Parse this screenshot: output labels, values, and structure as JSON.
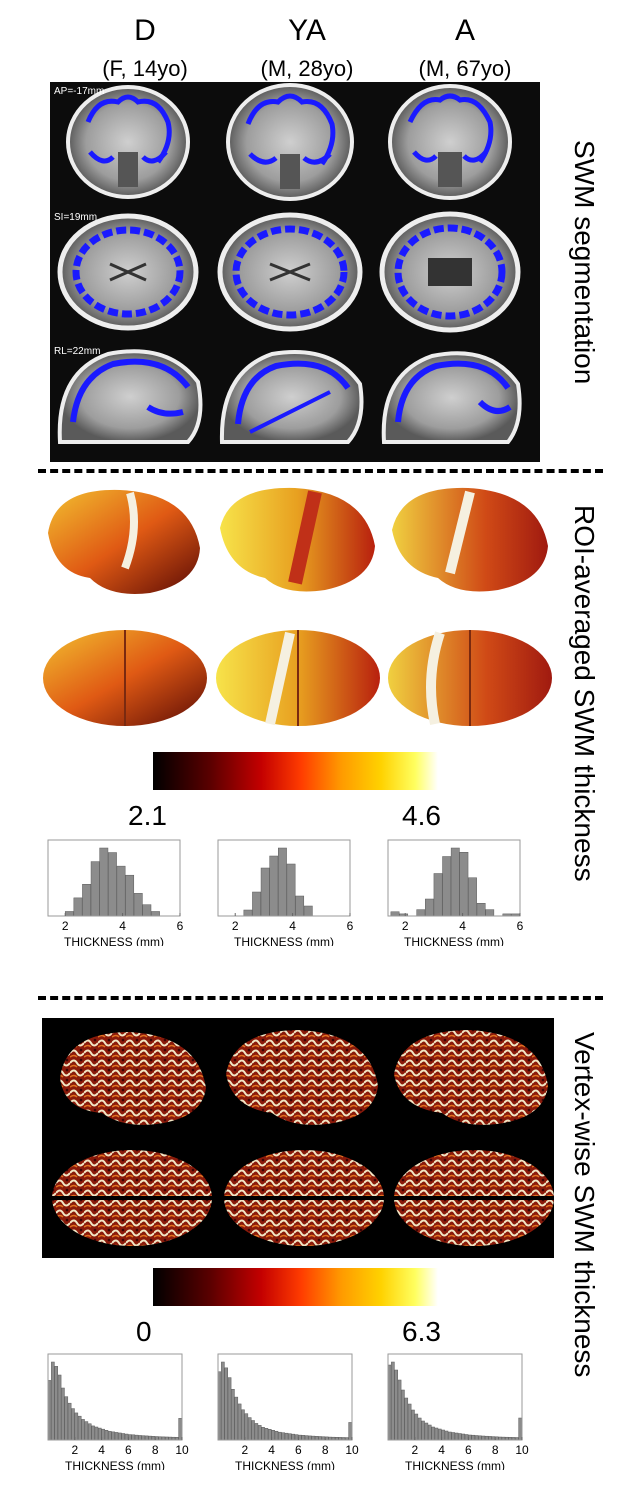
{
  "columns": [
    {
      "title": "D",
      "subtitle": "(F, 14yo)"
    },
    {
      "title": "YA",
      "subtitle": "(M, 28yo)"
    },
    {
      "title": "A",
      "subtitle": "(M, 67yo)"
    }
  ],
  "slice_labels": {
    "coronal": "AP=-17mm",
    "axial": "SI=19mm",
    "sagittal": "RL=22mm"
  },
  "section_labels": {
    "segmentation": "SWM segmentation",
    "roi": "ROI-averaged SWM  thickness",
    "vertex": "Vertex-wise SWM  thickness"
  },
  "roi_colorbar": {
    "min": "2.1",
    "max": "4.6"
  },
  "vertex_colorbar": {
    "min": "0",
    "max": "6.3"
  },
  "hist_xlabel": "THICKNESS (mm)",
  "roi_hist": {
    "xticks": [
      "2",
      "4",
      "6"
    ],
    "xlim": [
      1.4,
      6
    ],
    "bin_width": 0.3,
    "panels": [
      {
        "start": 2.0,
        "values": [
          2,
          8,
          14,
          24,
          30,
          28,
          22,
          18,
          10,
          5,
          2
        ]
      },
      {
        "start": 2.3,
        "values": [
          3,
          12,
          24,
          30,
          34,
          26,
          10,
          5
        ]
      },
      {
        "start": 1.5,
        "values": [
          2,
          1,
          0,
          3,
          8,
          20,
          28,
          32,
          30,
          18,
          6,
          3,
          0,
          1,
          1
        ]
      }
    ]
  },
  "vertex_hist": {
    "xticks": [
      "2",
      "4",
      "6",
      "8",
      "10"
    ],
    "xlim": [
      0,
      10
    ],
    "bin_width": 0.25,
    "panels": [
      {
        "values": [
          55,
          72,
          68,
          60,
          48,
          40,
          34,
          29,
          25,
          22,
          19,
          17,
          15,
          13,
          12,
          11,
          10,
          9,
          8,
          7.5,
          7,
          6.5,
          6,
          5.5,
          5,
          4.8,
          4.5,
          4.2,
          4,
          3.8,
          3.6,
          3.4,
          3.2,
          3,
          2.9,
          2.8,
          2.7,
          2.6,
          2.5,
          20
        ]
      },
      {
        "values": [
          70,
          80,
          74,
          64,
          52,
          44,
          37,
          31,
          27,
          23,
          20,
          17,
          15,
          13,
          12,
          11,
          10,
          9,
          8,
          7.5,
          7,
          6.5,
          6,
          5.5,
          5,
          4.8,
          4.5,
          4.2,
          4,
          3.8,
          3.6,
          3.4,
          3.2,
          3,
          2.9,
          2.8,
          2.7,
          2.6,
          2.5,
          18
        ]
      },
      {
        "values": [
          75,
          78,
          70,
          60,
          50,
          42,
          36,
          30,
          26,
          22,
          19,
          17,
          15,
          13,
          12,
          11,
          10,
          9,
          8,
          7.5,
          7,
          6.5,
          6,
          5.5,
          5,
          4.8,
          4.5,
          4.2,
          4,
          3.8,
          3.6,
          3.4,
          3.2,
          3,
          2.9,
          2.8,
          2.7,
          2.6,
          2.5,
          22
        ]
      }
    ]
  },
  "colors": {
    "segmentation": "#1a1aff",
    "hist_bar": "#8c8c8c"
  }
}
